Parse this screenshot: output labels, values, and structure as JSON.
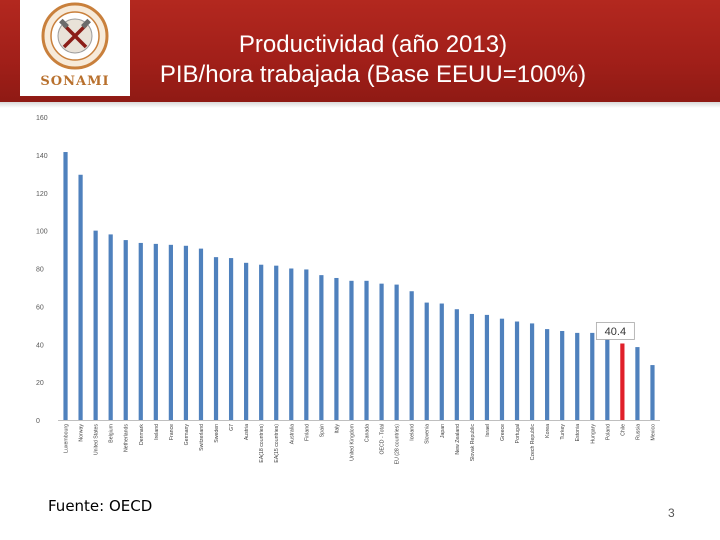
{
  "slide": {
    "title_line1": "Productividad (año 2013)",
    "title_line2": "PIB/hora trabajada (Base EEUU=100%)",
    "logo_text": "SONAMI",
    "source": "Fuente: OECD",
    "page_number": "3"
  },
  "colors": {
    "header": "#a82219",
    "bar": "#4f81bd",
    "highlight_bar": "#e0202a",
    "label_box_border": "#a7a7a7"
  },
  "chart_data": {
    "type": "bar",
    "title": "PIB/hora trabajada (Base EEUU=100%)",
    "xlabel": "",
    "ylabel": "",
    "ylim": [
      0,
      160
    ],
    "yticks": [
      0,
      20,
      40,
      60,
      80,
      100,
      120,
      140,
      160
    ],
    "grid": false,
    "highlight_category": "Chile",
    "annotation": {
      "category": "Chile",
      "text": "40.4"
    },
    "categories": [
      "Luxembourg",
      "Norway",
      "United States",
      "Belgium",
      "Netherlands",
      "Denmark",
      "Ireland",
      "France",
      "Germany",
      "Switzerland",
      "Sweden",
      "G7",
      "Austria",
      "EA(18 countries)",
      "EA(15 countries)",
      "Australia",
      "Finland",
      "Spain",
      "Italy",
      "United Kingdom",
      "Canada",
      "OECD - Total",
      "EU (28 countries)",
      "Iceland",
      "Slovenia",
      "Japan",
      "New Zealand",
      "Slovak Republic",
      "Israel",
      "Greece",
      "Portugal",
      "Czech Republic",
      "Korea",
      "Turkey",
      "Estonia",
      "Hungary",
      "Poland",
      "Chile",
      "Russia",
      "Mexico"
    ],
    "values": [
      141.5,
      129.5,
      100,
      98,
      95,
      93.5,
      93,
      92.5,
      92,
      90.5,
      86,
      85.5,
      83,
      82,
      81.5,
      80,
      79.5,
      76.5,
      75,
      73.5,
      73.5,
      72,
      71.5,
      68,
      62,
      61.5,
      58.5,
      56,
      55.5,
      53.5,
      52,
      51,
      48,
      47,
      46,
      46,
      44,
      40.4,
      38.5,
      29
    ]
  }
}
